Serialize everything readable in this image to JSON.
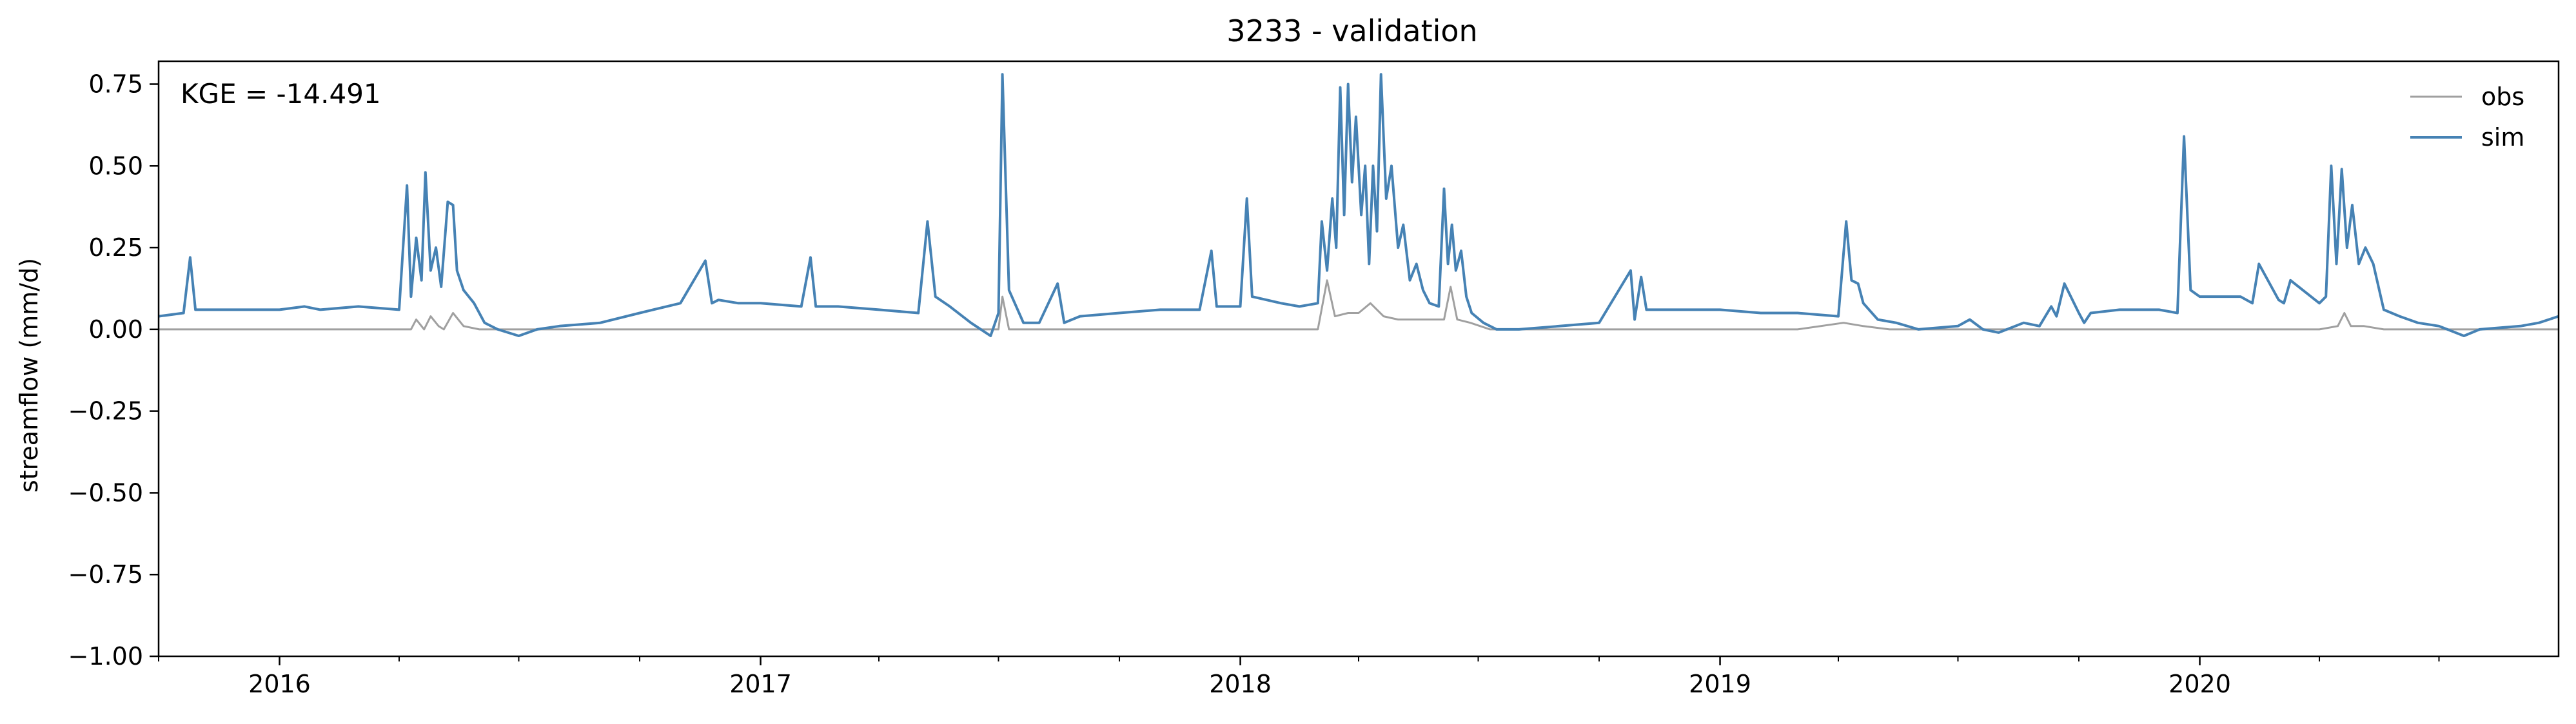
{
  "chart_data": {
    "type": "line",
    "title": "3233 - validation",
    "xlabel": "",
    "ylabel": "streamflow (mm/d)",
    "ylim": [
      -1.0,
      0.82
    ],
    "xlim": [
      "2015-10-01",
      "2020-09-30"
    ],
    "yticks": [
      0.75,
      0.5,
      0.25,
      0.0,
      -0.25,
      -0.5,
      -0.75,
      -1.0
    ],
    "ytick_labels": [
      "0.75",
      "0.50",
      "0.25",
      "0.00",
      "−0.25",
      "−0.50",
      "−0.75",
      "−1.00"
    ],
    "xticks": [
      "2016-01-01",
      "2017-01-01",
      "2018-01-01",
      "2019-01-01",
      "2020-01-01"
    ],
    "xtick_labels": [
      "2016",
      "2017",
      "2018",
      "2019",
      "2020"
    ],
    "grid": false,
    "legend_position": "top-right",
    "annotation": "KGE = -14.491",
    "series": [
      {
        "name": "obs",
        "color": "#a0a0a0",
        "x": [
          "2015-10-01",
          "2016-04-10",
          "2016-04-14",
          "2016-04-20",
          "2016-04-25",
          "2016-05-01",
          "2016-05-05",
          "2016-05-12",
          "2016-05-20",
          "2016-06-01",
          "2016-12-01",
          "2017-05-01",
          "2017-06-10",
          "2017-06-20",
          "2017-07-01",
          "2017-07-04",
          "2017-07-09",
          "2017-07-20",
          "2017-08-10",
          "2018-01-01",
          "2018-03-01",
          "2018-03-08",
          "2018-03-14",
          "2018-03-24",
          "2018-04-01",
          "2018-04-10",
          "2018-04-20",
          "2018-05-01",
          "2018-05-15",
          "2018-05-25",
          "2018-06-05",
          "2018-06-10",
          "2018-06-15",
          "2018-06-25",
          "2018-07-10",
          "2018-09-01",
          "2018-11-01",
          "2019-01-01",
          "2019-03-01",
          "2019-04-05",
          "2019-04-20",
          "2019-05-10",
          "2019-06-01",
          "2019-09-01",
          "2019-12-01",
          "2020-04-01",
          "2020-04-15",
          "2020-04-20",
          "2020-04-25",
          "2020-05-05",
          "2020-05-20",
          "2020-06-01",
          "2020-09-30"
        ],
        "y": [
          0.0,
          0.0,
          0.03,
          0.0,
          0.04,
          0.01,
          0.0,
          0.05,
          0.01,
          0.0,
          0.0,
          0.0,
          0.0,
          0.0,
          0.0,
          0.1,
          0.0,
          0.0,
          0.0,
          0.0,
          0.0,
          0.15,
          0.04,
          0.05,
          0.05,
          0.08,
          0.04,
          0.03,
          0.03,
          0.03,
          0.03,
          0.13,
          0.03,
          0.02,
          0.0,
          0.0,
          0.0,
          0.0,
          0.0,
          0.02,
          0.01,
          0.0,
          0.0,
          0.0,
          0.0,
          0.0,
          0.01,
          0.05,
          0.01,
          0.01,
          0.0,
          0.0,
          0.0
        ]
      },
      {
        "name": "sim",
        "color": "#4682b4",
        "x": [
          "2015-10-01",
          "2015-10-20",
          "2015-10-25",
          "2015-10-29",
          "2015-11-05",
          "2015-12-01",
          "2016-01-01",
          "2016-01-20",
          "2016-02-01",
          "2016-03-01",
          "2016-04-01",
          "2016-04-07",
          "2016-04-10",
          "2016-04-14",
          "2016-04-18",
          "2016-04-21",
          "2016-04-25",
          "2016-04-29",
          "2016-05-03",
          "2016-05-08",
          "2016-05-12",
          "2016-05-15",
          "2016-05-20",
          "2016-05-28",
          "2016-06-05",
          "2016-06-15",
          "2016-07-01",
          "2016-07-15",
          "2016-08-01",
          "2016-09-01",
          "2016-10-01",
          "2016-11-01",
          "2016-11-20",
          "2016-11-25",
          "2016-11-30",
          "2016-12-15",
          "2017-01-01",
          "2017-02-01",
          "2017-02-08",
          "2017-02-12",
          "2017-03-01",
          "2017-04-01",
          "2017-05-01",
          "2017-05-08",
          "2017-05-14",
          "2017-05-25",
          "2017-06-10",
          "2017-06-25",
          "2017-07-01",
          "2017-07-04",
          "2017-07-09",
          "2017-07-20",
          "2017-08-01",
          "2017-08-15",
          "2017-08-20",
          "2017-09-01",
          "2017-10-01",
          "2017-11-01",
          "2017-12-01",
          "2017-12-10",
          "2017-12-14",
          "2018-01-01",
          "2018-01-06",
          "2018-01-10",
          "2018-02-01",
          "2018-02-15",
          "2018-03-01",
          "2018-03-04",
          "2018-03-08",
          "2018-03-12",
          "2018-03-15",
          "2018-03-18",
          "2018-03-21",
          "2018-03-24",
          "2018-03-27",
          "2018-03-30",
          "2018-04-03",
          "2018-04-06",
          "2018-04-09",
          "2018-04-12",
          "2018-04-15",
          "2018-04-18",
          "2018-04-22",
          "2018-04-26",
          "2018-05-01",
          "2018-05-05",
          "2018-05-10",
          "2018-05-15",
          "2018-05-20",
          "2018-05-25",
          "2018-06-01",
          "2018-06-05",
          "2018-06-08",
          "2018-06-11",
          "2018-06-14",
          "2018-06-18",
          "2018-06-22",
          "2018-06-26",
          "2018-07-05",
          "2018-07-15",
          "2018-08-01",
          "2018-09-01",
          "2018-10-01",
          "2018-10-25",
          "2018-10-28",
          "2018-11-02",
          "2018-11-06",
          "2018-11-15",
          "2018-12-01",
          "2019-01-01",
          "2019-02-01",
          "2019-03-01",
          "2019-04-01",
          "2019-04-07",
          "2019-04-11",
          "2019-04-16",
          "2019-04-20",
          "2019-05-01",
          "2019-05-15",
          "2019-06-01",
          "2019-07-01",
          "2019-07-10",
          "2019-07-20",
          "2019-08-01",
          "2019-08-20",
          "2019-09-01",
          "2019-09-10",
          "2019-09-14",
          "2019-09-20",
          "2019-10-01",
          "2019-10-05",
          "2019-10-10",
          "2019-11-01",
          "2019-12-01",
          "2019-12-15",
          "2019-12-20",
          "2019-12-25",
          "2020-01-01",
          "2020-02-01",
          "2020-02-10",
          "2020-02-15",
          "2020-03-01",
          "2020-03-05",
          "2020-03-10",
          "2020-04-01",
          "2020-04-06",
          "2020-04-10",
          "2020-04-14",
          "2020-04-18",
          "2020-04-22",
          "2020-04-26",
          "2020-05-01",
          "2020-05-06",
          "2020-05-12",
          "2020-05-20",
          "2020-06-01",
          "2020-06-15",
          "2020-07-01",
          "2020-07-20",
          "2020-08-01",
          "2020-09-01",
          "2020-09-15",
          "2020-09-30"
        ],
        "y": [
          0.04,
          0.05,
          0.22,
          0.06,
          0.06,
          0.06,
          0.06,
          0.07,
          0.06,
          0.07,
          0.06,
          0.44,
          0.1,
          0.28,
          0.15,
          0.48,
          0.18,
          0.25,
          0.13,
          0.39,
          0.38,
          0.18,
          0.12,
          0.08,
          0.02,
          0.0,
          -0.02,
          0.0,
          0.01,
          0.02,
          0.05,
          0.08,
          0.21,
          0.08,
          0.09,
          0.08,
          0.08,
          0.07,
          0.22,
          0.07,
          0.07,
          0.06,
          0.05,
          0.33,
          0.1,
          0.07,
          0.02,
          -0.02,
          0.05,
          0.78,
          0.12,
          0.02,
          0.02,
          0.14,
          0.02,
          0.04,
          0.05,
          0.06,
          0.06,
          0.24,
          0.07,
          0.07,
          0.4,
          0.1,
          0.08,
          0.07,
          0.08,
          0.33,
          0.18,
          0.4,
          0.25,
          0.74,
          0.35,
          0.75,
          0.45,
          0.65,
          0.35,
          0.5,
          0.2,
          0.5,
          0.3,
          0.78,
          0.4,
          0.5,
          0.25,
          0.32,
          0.15,
          0.2,
          0.12,
          0.08,
          0.07,
          0.43,
          0.2,
          0.32,
          0.18,
          0.24,
          0.1,
          0.05,
          0.02,
          0.0,
          0.0,
          0.01,
          0.02,
          0.18,
          0.03,
          0.16,
          0.06,
          0.06,
          0.06,
          0.06,
          0.05,
          0.05,
          0.04,
          0.33,
          0.15,
          0.14,
          0.08,
          0.03,
          0.02,
          0.0,
          0.01,
          0.03,
          0.0,
          -0.01,
          0.02,
          0.01,
          0.07,
          0.04,
          0.14,
          0.05,
          0.02,
          0.05,
          0.06,
          0.06,
          0.05,
          0.59,
          0.12,
          0.1,
          0.1,
          0.08,
          0.2,
          0.09,
          0.08,
          0.15,
          0.08,
          0.1,
          0.5,
          0.2,
          0.49,
          0.25,
          0.38,
          0.2,
          0.25,
          0.2,
          0.06,
          0.04,
          0.02,
          0.01,
          -0.02,
          0.0,
          0.01,
          0.02,
          0.04
        ]
      }
    ]
  }
}
